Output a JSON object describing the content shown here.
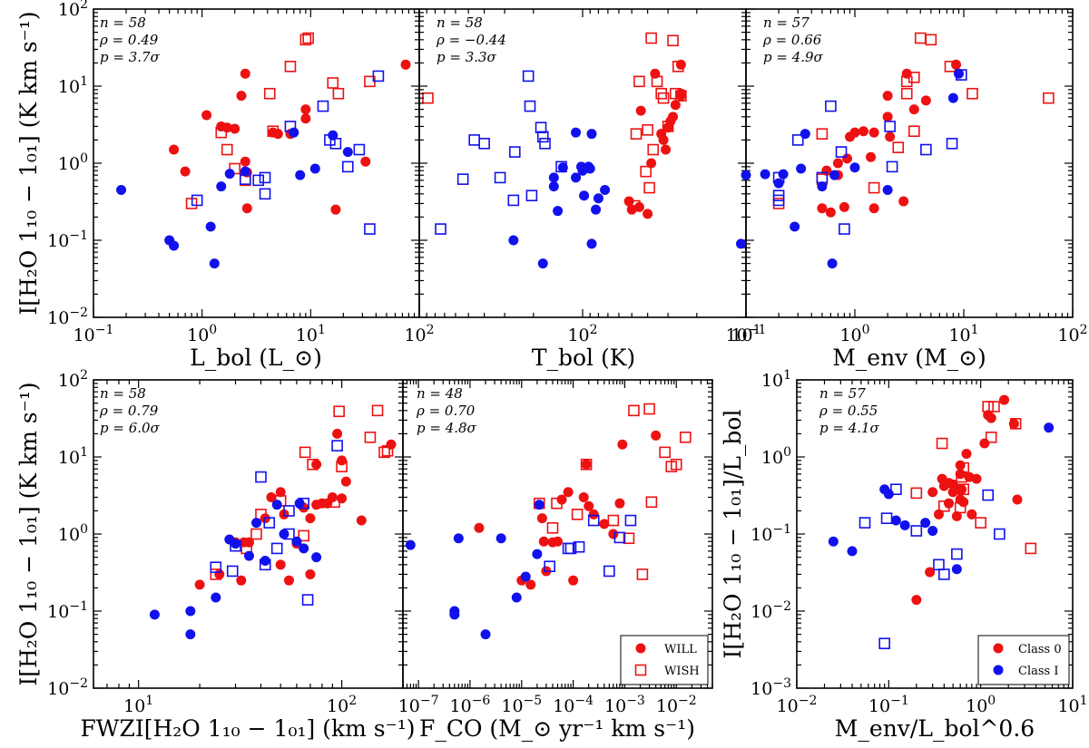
{
  "colors": {
    "red": "#ee1111",
    "blue": "#1111ee"
  },
  "legends": {
    "left": {
      "filled": "WILL",
      "open": "WISH"
    },
    "right": {
      "red": "Class 0",
      "blue": "Class I"
    }
  },
  "chart_data": [
    {
      "type": "scatter",
      "id": "p1",
      "xscale": "log",
      "yscale": "log",
      "xlim": [
        0.1,
        100
      ],
      "ylim": [
        0.01,
        100
      ],
      "xticklabels": [
        "10^-1",
        "10^0",
        "10^1",
        "10^2"
      ],
      "yticklabels": [
        "10^-2",
        "10^-1",
        "10^0",
        "10^1",
        "10^2"
      ],
      "xlabel": "L_bol (L_⊙)",
      "ylabel": "I[H₂O 1₁₀ − 1₀₁] (K km s⁻¹)",
      "stats": [
        "n = 58",
        "ρ = 0.49",
        "p = 3.7σ"
      ],
      "series": [
        {
          "name": "red-filled",
          "color": "red",
          "marker": "filled",
          "x": [
            0.55,
            0.7,
            1.1,
            1.5,
            1.7,
            2,
            2.3,
            2.5,
            2.5,
            2.6,
            2.6,
            4.5,
            5,
            6.5,
            9,
            9,
            17,
            32,
            75
          ],
          "y": [
            1.5,
            0.78,
            4.2,
            3,
            2.9,
            2.8,
            7.5,
            14.5,
            1.05,
            0.76,
            0.26,
            2.5,
            2.4,
            2.4,
            3.8,
            5,
            0.25,
            1.05,
            19
          ]
        },
        {
          "name": "red-open",
          "color": "red",
          "marker": "open",
          "x": [
            0.8,
            1.5,
            1.7,
            2,
            2.5,
            4.2,
            4.5,
            6.5,
            9,
            9.5,
            16,
            18,
            35,
            120
          ],
          "y": [
            0.3,
            2.5,
            1.5,
            0.85,
            0.6,
            8,
            2.6,
            18,
            40,
            42,
            11,
            8,
            11.5,
            7
          ]
        },
        {
          "name": "blue-filled",
          "color": "blue",
          "marker": "filled",
          "x": [
            0.18,
            0.5,
            0.55,
            1.2,
            1.3,
            1.5,
            1.8,
            2.5,
            7,
            8,
            11,
            16,
            22
          ],
          "y": [
            0.45,
            0.1,
            0.085,
            0.15,
            0.05,
            0.5,
            0.73,
            0.78,
            2.5,
            0.7,
            0.85,
            2.3,
            1.4
          ]
        },
        {
          "name": "blue-open",
          "color": "blue",
          "marker": "open",
          "x": [
            0.9,
            2.5,
            3.3,
            3.8,
            3.8,
            6.5,
            13,
            15,
            17,
            22,
            28,
            35,
            42
          ],
          "y": [
            0.33,
            0.62,
            0.6,
            0.4,
            0.65,
            3,
            5.5,
            2,
            1.8,
            0.9,
            1.5,
            0.14,
            13.5
          ]
        }
      ]
    },
    {
      "type": "scatter",
      "id": "p2",
      "xscale": "log",
      "yscale": "log",
      "xlim": [
        1000,
        10
      ],
      "ylim": [
        0.01,
        100
      ],
      "xticklabels": [
        "10^2",
        "10^1"
      ],
      "xlabel": "T_bol (K)",
      "stats": [
        "n = 58",
        "ρ = −0.44",
        "p = 3.3σ"
      ],
      "series": [
        {
          "name": "red-filled",
          "color": "red",
          "marker": "filled",
          "x": [
            52,
            50,
            45,
            38,
            36,
            44,
            40,
            33,
            32,
            31,
            30,
            29,
            28,
            27,
            25,
            25,
            25
          ],
          "y": [
            0.32,
            0.25,
            0.27,
            1,
            14.5,
            4.8,
            0.22,
            2.4,
            2,
            1.5,
            2.9,
            3.5,
            4,
            5.7,
            7.5,
            8,
            19
          ]
        },
        {
          "name": "red-open",
          "color": "red",
          "marker": "open",
          "x": [
            48,
            47,
            45,
            41,
            40,
            39,
            38,
            37,
            35,
            33,
            32,
            30,
            28,
            27,
            26,
            25
          ],
          "y": [
            0.28,
            2.4,
            11.5,
            0.78,
            2.7,
            0.48,
            42,
            1.5,
            11.5,
            8,
            7,
            3,
            39,
            8,
            18,
            7.5
          ]
        },
        {
          "name": "blue-filled",
          "color": "blue",
          "marker": "filled",
          "x": [
            265,
            175,
            150,
            150,
            142,
            132,
            110,
            110,
            102,
            100,
            98,
            92,
            90,
            88,
            88,
            83,
            80,
            73
          ],
          "y": [
            0.1,
            0.05,
            0.5,
            0.65,
            0.24,
            0.88,
            2.5,
            0.65,
            0.9,
            0.8,
            0.38,
            0.9,
            0.85,
            2.4,
            0.09,
            0.25,
            0.35,
            0.45
          ]
        },
        {
          "name": "blue-open",
          "color": "blue",
          "marker": "open",
          "x": [
            740,
            540,
            460,
            400,
            320,
            260,
            265,
            215,
            210,
            205,
            180,
            175,
            135,
            170
          ],
          "y": [
            0.14,
            0.62,
            2,
            1.8,
            0.65,
            1.4,
            0.33,
            13.5,
            5.5,
            0.38,
            2.9,
            2.2,
            0.9,
            1.8
          ]
        }
      ]
    },
    {
      "type": "scatter",
      "id": "p3",
      "xscale": "log",
      "yscale": "log",
      "xlim": [
        0.1,
        100
      ],
      "ylim": [
        0.01,
        100
      ],
      "xticklabels": [
        "10^-1",
        "10^0",
        "10^1",
        "10^2"
      ],
      "xlabel": "M_env (M_⊙)",
      "stats": [
        "n = 57",
        "ρ = 0.66",
        "p = 4.9σ"
      ],
      "series": [
        {
          "name": "red-filled",
          "color": "red",
          "marker": "filled",
          "x": [
            0.5,
            0.55,
            0.55,
            0.6,
            0.7,
            0.7,
            0.8,
            0.85,
            0.9,
            1,
            1.2,
            1.4,
            1.5,
            1.5,
            2,
            2,
            2.1,
            2.8,
            3,
            3.5,
            4.5,
            8.5
          ],
          "y": [
            0.26,
            0.8,
            0.8,
            0.23,
            1,
            0.7,
            0.27,
            1.15,
            2.2,
            2.5,
            2.6,
            1.2,
            0.26,
            2.5,
            7.5,
            4,
            2.2,
            0.32,
            14.5,
            5,
            6.5,
            19
          ]
        },
        {
          "name": "red-open",
          "color": "red",
          "marker": "open",
          "x": [
            0.2,
            0.5,
            0.5,
            1.5,
            2.5,
            3,
            3,
            3.5,
            3.5,
            4,
            5,
            7.5,
            12,
            60
          ],
          "y": [
            0.3,
            0.62,
            2.4,
            0.48,
            1.6,
            8,
            11.5,
            2.6,
            13,
            42,
            40,
            18,
            8,
            7
          ]
        },
        {
          "name": "blue-filled",
          "color": "blue",
          "marker": "filled",
          "x": [
            0.09,
            0.1,
            0.15,
            0.2,
            0.22,
            0.28,
            0.32,
            0.35,
            0.5,
            0.62,
            0.65,
            1,
            2,
            8,
            9
          ],
          "y": [
            0.09,
            0.7,
            0.72,
            0.55,
            0.72,
            0.15,
            0.85,
            2.4,
            0.5,
            0.05,
            0.7,
            0.88,
            0.45,
            7,
            14.5
          ]
        },
        {
          "name": "blue-open",
          "color": "blue",
          "marker": "open",
          "x": [
            0.2,
            0.2,
            0.2,
            0.3,
            0.5,
            0.6,
            0.75,
            0.8,
            2.1,
            2.2,
            4.5,
            7.8,
            9.5
          ],
          "y": [
            0.65,
            0.33,
            0.38,
            2,
            0.65,
            5.5,
            1.4,
            0.14,
            3,
            0.9,
            1.5,
            1.8,
            14
          ]
        }
      ]
    },
    {
      "type": "scatter",
      "id": "p4",
      "xscale": "log",
      "yscale": "log",
      "xlim": [
        6,
        200
      ],
      "ylim": [
        0.01,
        100
      ],
      "xticklabels": [
        "10^1",
        "10^2"
      ],
      "yticklabels": [
        "10^-2",
        "10^-1",
        "10^0",
        "10^1",
        "10^2"
      ],
      "xlabel": "FWZI[H₂O 1₁₀ − 1₀₁] (km s⁻¹)",
      "ylabel": "I[H₂O 1₁₀ − 1₀₁] (K km s⁻¹)",
      "stats": [
        "n = 58",
        "ρ = 0.79",
        "p = 6.0σ"
      ],
      "series": [
        {
          "name": "red-filled",
          "color": "red",
          "marker": "filled",
          "x": [
            20,
            25,
            30,
            32,
            33,
            35,
            42,
            45,
            50,
            50,
            52,
            55,
            60,
            65,
            70,
            70,
            75,
            75,
            80,
            85,
            90,
            95,
            100,
            105,
            125,
            175,
            100
          ],
          "y": [
            0.22,
            0.3,
            0.78,
            0.25,
            0.78,
            0.78,
            1.6,
            3,
            3.5,
            0.4,
            1.8,
            0.25,
            0.75,
            2.2,
            1.6,
            0.3,
            8,
            2.4,
            2.5,
            2.5,
            3,
            20,
            2.9,
            4.8,
            1.5,
            14.5,
            9
          ]
        },
        {
          "name": "red-open",
          "color": "red",
          "marker": "open",
          "x": [
            24,
            34,
            38,
            40,
            50,
            65,
            66,
            72,
            92,
            97,
            100,
            138,
            150,
            162,
            168
          ],
          "y": [
            0.3,
            0.65,
            1,
            1.8,
            2.7,
            0.95,
            11.5,
            8,
            2.6,
            39,
            7.5,
            18,
            40,
            11.5,
            12
          ]
        },
        {
          "name": "blue-filled",
          "color": "blue",
          "marker": "filled",
          "x": [
            12,
            18,
            18,
            24,
            28,
            30,
            35,
            38,
            42,
            48,
            52,
            60,
            62,
            65,
            75
          ],
          "y": [
            0.09,
            0.1,
            0.05,
            0.15,
            0.85,
            0.75,
            0.52,
            1.4,
            0.45,
            2.4,
            1,
            0.8,
            2.5,
            0.65,
            0.5
          ]
        },
        {
          "name": "blue-open",
          "color": "blue",
          "marker": "open",
          "x": [
            24,
            29,
            30,
            40,
            42,
            44,
            48,
            55,
            55,
            65,
            68,
            95
          ],
          "y": [
            0.37,
            0.33,
            0.7,
            5.5,
            0.4,
            1.4,
            0.65,
            2,
            1,
            2.5,
            0.14,
            14
          ]
        }
      ]
    },
    {
      "type": "scatter",
      "id": "p5",
      "xscale": "log",
      "yscale": "log",
      "xlim": [
        5e-08,
        0.05
      ],
      "ylim": [
        0.01,
        100
      ],
      "xticklabels": [
        "10^-7",
        "10^-6",
        "10^-5",
        "10^-4",
        "10^-3",
        "10^-2"
      ],
      "xlabel": "F_CO (M_⊙ yr⁻¹ km s⁻¹)",
      "stats": [
        "n = 48",
        "ρ = 0.70",
        "p = 4.8σ"
      ],
      "series": [
        {
          "name": "red-filled",
          "color": "red",
          "marker": "filled",
          "x": [
            1.5e-06,
            1e-05,
            1.5e-05,
            2.5e-05,
            2.7e-05,
            3e-05,
            4e-05,
            5e-05,
            6e-05,
            8e-05,
            0.0001,
            0.00016,
            0.00018,
            0.0002,
            0.00025,
            0.0004,
            0.0006,
            0.0008,
            0.0009,
            0.004
          ],
          "y": [
            1.2,
            0.25,
            0.22,
            1.6,
            0.8,
            0.33,
            0.78,
            0.8,
            2.8,
            3.5,
            0.25,
            3,
            8,
            2.3,
            1.8,
            1.35,
            1,
            2.5,
            14.5,
            19
          ]
        },
        {
          "name": "red-open",
          "color": "red",
          "marker": "open",
          "x": [
            2.2e-05,
            4e-05,
            4.8e-05,
            0.00012,
            0.00018,
            0.0006,
            0.0012,
            0.0015,
            0.0022,
            0.003,
            0.0033,
            0.006,
            0.008,
            0.01,
            0.015
          ],
          "y": [
            2.5,
            1.2,
            2.5,
            1.8,
            8,
            1.5,
            0.88,
            40,
            0.3,
            42,
            2.6,
            11.5,
            7.5,
            8,
            18
          ]
        },
        {
          "name": "blue-filled",
          "color": "blue",
          "marker": "filled",
          "x": [
            7e-08,
            5e-07,
            5e-07,
            6e-07,
            2e-06,
            4e-06,
            8e-06,
            1.2e-05,
            2e-05,
            2.2e-05
          ],
          "y": [
            0.72,
            0.09,
            0.1,
            0.88,
            0.05,
            0.88,
            0.15,
            0.28,
            0.55,
            2.4
          ]
        },
        {
          "name": "blue-open",
          "color": "blue",
          "marker": "open",
          "x": [
            3.5e-05,
            8e-05,
            9e-05,
            0.00013,
            0.00025,
            0.0005,
            0.0008,
            0.0013
          ],
          "y": [
            0.38,
            0.65,
            0.65,
            0.68,
            1.5,
            0.33,
            0.9,
            1.5
          ]
        }
      ]
    },
    {
      "type": "scatter",
      "id": "p6",
      "xscale": "log",
      "yscale": "log",
      "xlim": [
        0.01,
        10
      ],
      "ylim": [
        0.001,
        10
      ],
      "xticklabels": [
        "10^-2",
        "10^-1",
        "10^0",
        "10^1"
      ],
      "yticklabels": [
        "10^-3",
        "10^-2",
        "10^-1",
        "10^0",
        "10^1"
      ],
      "xlabel": "M_env/L_bol^0.6",
      "ylabel": "I[H₂O 1₁₀ − 1₀₁]/L_bol",
      "stats": [
        "n = 57",
        "ρ = 0.55",
        "p = 4.1σ"
      ],
      "series": [
        {
          "name": "red-filled",
          "color": "red",
          "marker": "filled",
          "x": [
            0.2,
            0.28,
            0.3,
            0.35,
            0.38,
            0.4,
            0.45,
            0.45,
            0.5,
            0.5,
            0.55,
            0.55,
            0.6,
            0.6,
            0.6,
            0.62,
            0.65,
            0.7,
            0.75,
            0.8,
            0.9,
            1.1,
            1.2,
            1.3,
            1.8,
            2.3,
            2.5
          ],
          "y": [
            0.014,
            0.032,
            0.35,
            0.18,
            0.52,
            0.42,
            0.46,
            0.25,
            0.44,
            0.35,
            0.38,
            0.17,
            0.78,
            0.6,
            0.28,
            0.38,
            0.26,
            1.1,
            0.55,
            0.18,
            0.52,
            1.5,
            3.5,
            3.2,
            5.5,
            2.7,
            0.28
          ]
        },
        {
          "name": "red-open",
          "color": "red",
          "marker": "open",
          "x": [
            0.2,
            0.38,
            0.4,
            0.6,
            0.62,
            0.65,
            0.65,
            1,
            1.2,
            1.3,
            1.4,
            2.4,
            3.5
          ],
          "y": [
            0.34,
            1.5,
            0.23,
            0.22,
            0.55,
            0.38,
            0.72,
            0.14,
            4.5,
            1.8,
            4.5,
            2.7,
            0.065
          ]
        },
        {
          "name": "blue-filled",
          "color": "blue",
          "marker": "filled",
          "x": [
            0.025,
            0.04,
            0.09,
            0.1,
            0.12,
            0.15,
            0.25,
            0.3,
            0.55,
            5.5
          ],
          "y": [
            0.08,
            0.06,
            0.38,
            0.33,
            0.15,
            0.13,
            0.14,
            0.11,
            0.035,
            2.4
          ]
        },
        {
          "name": "blue-open",
          "color": "blue",
          "marker": "open",
          "x": [
            0.055,
            0.09,
            0.095,
            0.12,
            0.2,
            0.35,
            0.4,
            0.55,
            1.2,
            1.6
          ],
          "y": [
            0.14,
            0.0038,
            0.16,
            0.38,
            0.11,
            0.04,
            0.03,
            0.055,
            0.32,
            0.1
          ]
        }
      ]
    }
  ]
}
